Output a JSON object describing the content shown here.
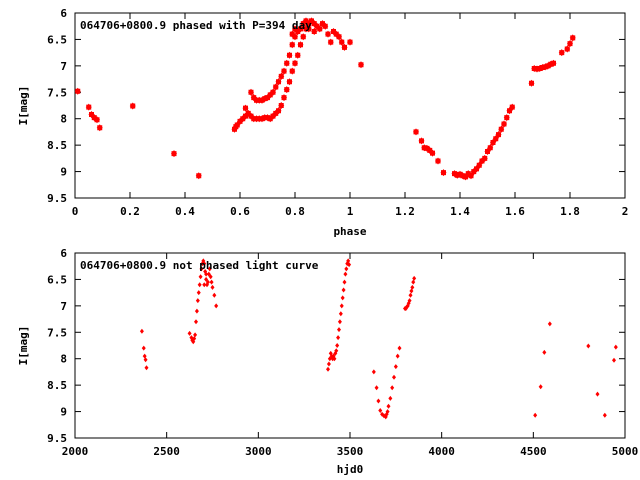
{
  "colors": {
    "points": "#ff0000",
    "axes": "#000000",
    "background": "#ffffff"
  },
  "chart_data": [
    {
      "type": "scatter",
      "title": "064706+0800.9 phased with P=394 day",
      "xlabel": "phase",
      "ylabel": "I[mag]",
      "xlim": [
        0,
        2
      ],
      "ylim": [
        9.5,
        6
      ],
      "y_inverted": true,
      "xticks": [
        "0",
        "0.2",
        "0.4",
        "0.6",
        "0.8",
        "1",
        "1.2",
        "1.4",
        "1.6",
        "1.8",
        "2"
      ],
      "yticks": [
        "6",
        "6.5",
        "7",
        "7.5",
        "8",
        "8.5",
        "9",
        "9.5"
      ],
      "series": [
        {
          "points": [
            [
              0.01,
              7.48
            ],
            [
              0.05,
              7.78
            ],
            [
              0.06,
              7.92
            ],
            [
              0.07,
              7.98
            ],
            [
              0.08,
              8.02
            ],
            [
              0.09,
              8.17
            ],
            [
              0.21,
              7.76
            ],
            [
              0.36,
              8.66
            ],
            [
              0.45,
              9.08
            ],
            [
              0.58,
              8.2
            ],
            [
              0.585,
              8.15
            ],
            [
              0.59,
              8.12
            ],
            [
              0.6,
              8.05
            ],
            [
              0.61,
              8.0
            ],
            [
              0.62,
              7.95
            ],
            [
              0.63,
              7.9
            ],
            [
              0.64,
              7.95
            ],
            [
              0.65,
              8.0
            ],
            [
              0.66,
              8.0
            ],
            [
              0.67,
              8.0
            ],
            [
              0.68,
              8.0
            ],
            [
              0.69,
              7.98
            ],
            [
              0.7,
              7.98
            ],
            [
              0.71,
              8.0
            ],
            [
              0.72,
              7.95
            ],
            [
              0.73,
              7.9
            ],
            [
              0.74,
              7.85
            ],
            [
              0.75,
              7.75
            ],
            [
              0.76,
              7.6
            ],
            [
              0.77,
              7.45
            ],
            [
              0.78,
              7.3
            ],
            [
              0.79,
              7.1
            ],
            [
              0.8,
              6.95
            ],
            [
              0.81,
              6.8
            ],
            [
              0.82,
              6.6
            ],
            [
              0.83,
              6.45
            ],
            [
              0.84,
              6.3
            ],
            [
              0.85,
              6.2
            ],
            [
              0.86,
              6.15
            ],
            [
              0.87,
              6.2
            ],
            [
              0.62,
              7.8
            ],
            [
              0.64,
              7.5
            ],
            [
              0.65,
              7.6
            ],
            [
              0.66,
              7.65
            ],
            [
              0.67,
              7.65
            ],
            [
              0.68,
              7.65
            ],
            [
              0.69,
              7.62
            ],
            [
              0.7,
              7.6
            ],
            [
              0.71,
              7.55
            ],
            [
              0.72,
              7.5
            ],
            [
              0.73,
              7.4
            ],
            [
              0.74,
              7.3
            ],
            [
              0.75,
              7.2
            ],
            [
              0.76,
              7.1
            ],
            [
              0.77,
              6.95
            ],
            [
              0.78,
              6.8
            ],
            [
              0.79,
              6.6
            ],
            [
              0.8,
              6.45
            ],
            [
              0.81,
              6.35
            ],
            [
              0.82,
              6.3
            ],
            [
              0.83,
              6.2
            ],
            [
              0.84,
              6.15
            ],
            [
              0.79,
              6.4
            ],
            [
              0.8,
              6.3
            ],
            [
              0.85,
              6.3
            ],
            [
              0.87,
              6.35
            ],
            [
              0.88,
              6.25
            ],
            [
              0.89,
              6.3
            ],
            [
              0.9,
              6.2
            ],
            [
              0.91,
              6.25
            ],
            [
              0.92,
              6.4
            ],
            [
              0.93,
              6.55
            ],
            [
              0.94,
              6.35
            ],
            [
              0.95,
              6.4
            ],
            [
              0.96,
              6.45
            ],
            [
              0.97,
              6.55
            ],
            [
              0.98,
              6.65
            ],
            [
              1.0,
              6.55
            ],
            [
              1.04,
              6.98
            ],
            [
              1.24,
              8.25
            ],
            [
              1.26,
              8.42
            ],
            [
              1.27,
              8.55
            ],
            [
              1.28,
              8.56
            ],
            [
              1.29,
              8.6
            ],
            [
              1.3,
              8.65
            ],
            [
              1.32,
              8.8
            ],
            [
              1.34,
              9.02
            ],
            [
              1.38,
              9.04
            ],
            [
              1.39,
              9.07
            ],
            [
              1.4,
              9.05
            ],
            [
              1.41,
              9.08
            ],
            [
              1.42,
              9.1
            ],
            [
              1.43,
              9.04
            ],
            [
              1.44,
              9.08
            ],
            [
              1.45,
              9.0
            ],
            [
              1.46,
              8.95
            ],
            [
              1.47,
              8.88
            ],
            [
              1.48,
              8.8
            ],
            [
              1.49,
              8.75
            ],
            [
              1.5,
              8.62
            ],
            [
              1.51,
              8.55
            ],
            [
              1.52,
              8.45
            ],
            [
              1.53,
              8.38
            ],
            [
              1.54,
              8.3
            ],
            [
              1.55,
              8.2
            ],
            [
              1.56,
              8.1
            ],
            [
              1.57,
              7.98
            ],
            [
              1.58,
              7.85
            ],
            [
              1.59,
              7.78
            ],
            [
              1.66,
              7.33
            ],
            [
              1.67,
              7.05
            ],
            [
              1.68,
              7.06
            ],
            [
              1.69,
              7.05
            ],
            [
              1.7,
              7.03
            ],
            [
              1.71,
              7.02
            ],
            [
              1.72,
              7.0
            ],
            [
              1.73,
              6.97
            ],
            [
              1.74,
              6.95
            ],
            [
              1.77,
              6.75
            ],
            [
              1.79,
              6.68
            ],
            [
              1.8,
              6.58
            ],
            [
              1.81,
              6.47
            ]
          ]
        }
      ]
    },
    {
      "type": "scatter",
      "title": "064706+0800.9 not phased light curve",
      "xlabel": "hjd0",
      "ylabel": "I[mag]",
      "xlim": [
        2000,
        5000
      ],
      "ylim": [
        9.5,
        6
      ],
      "y_inverted": true,
      "xticks": [
        "2000",
        "2500",
        "3000",
        "3500",
        "4000",
        "4500",
        "5000"
      ],
      "yticks": [
        "6",
        "6.5",
        "7",
        "7.5",
        "8",
        "8.5",
        "9",
        "9.5"
      ],
      "series": [
        {
          "points": [
            [
              2365,
              7.48
            ],
            [
              2375,
              7.8
            ],
            [
              2380,
              7.95
            ],
            [
              2385,
              8.02
            ],
            [
              2390,
              8.17
            ],
            [
              2625,
              7.52
            ],
            [
              2635,
              7.6
            ],
            [
              2640,
              7.65
            ],
            [
              2645,
              7.68
            ],
            [
              2650,
              7.62
            ],
            [
              2655,
              7.55
            ],
            [
              2660,
              7.3
            ],
            [
              2665,
              7.1
            ],
            [
              2670,
              6.9
            ],
            [
              2675,
              6.75
            ],
            [
              2680,
              6.6
            ],
            [
              2685,
              6.45
            ],
            [
              2690,
              6.3
            ],
            [
              2695,
              6.2
            ],
            [
              2700,
              6.15
            ],
            [
              2705,
              6.2
            ],
            [
              2710,
              6.35
            ],
            [
              2715,
              6.5
            ],
            [
              2720,
              6.6
            ],
            [
              2725,
              6.55
            ],
            [
              2730,
              6.4
            ],
            [
              2735,
              6.3
            ],
            [
              2740,
              6.45
            ],
            [
              2745,
              6.55
            ],
            [
              2750,
              6.65
            ],
            [
              2760,
              6.8
            ],
            [
              2770,
              7.0
            ],
            [
              2705,
              6.6
            ],
            [
              2715,
              6.4
            ],
            [
              3380,
              8.2
            ],
            [
              3385,
              8.1
            ],
            [
              3390,
              8.0
            ],
            [
              3395,
              7.9
            ],
            [
              3400,
              7.95
            ],
            [
              3405,
              8.0
            ],
            [
              3410,
              7.95
            ],
            [
              3415,
              8.0
            ],
            [
              3420,
              7.9
            ],
            [
              3425,
              7.85
            ],
            [
              3430,
              7.75
            ],
            [
              3435,
              7.6
            ],
            [
              3440,
              7.45
            ],
            [
              3445,
              7.3
            ],
            [
              3450,
              7.15
            ],
            [
              3455,
              7.0
            ],
            [
              3460,
              6.85
            ],
            [
              3465,
              6.7
            ],
            [
              3470,
              6.55
            ],
            [
              3475,
              6.4
            ],
            [
              3480,
              6.3
            ],
            [
              3485,
              6.2
            ],
            [
              3490,
              6.15
            ],
            [
              3495,
              6.22
            ],
            [
              3630,
              8.25
            ],
            [
              3645,
              8.55
            ],
            [
              3655,
              8.8
            ],
            [
              3665,
              8.98
            ],
            [
              3675,
              9.05
            ],
            [
              3685,
              9.08
            ],
            [
              3695,
              9.1
            ],
            [
              3700,
              9.05
            ],
            [
              3705,
              9.0
            ],
            [
              3710,
              8.9
            ],
            [
              3720,
              8.75
            ],
            [
              3730,
              8.55
            ],
            [
              3740,
              8.35
            ],
            [
              3750,
              8.15
            ],
            [
              3760,
              7.95
            ],
            [
              3770,
              7.8
            ],
            [
              3800,
              7.05
            ],
            [
              3805,
              7.05
            ],
            [
              3810,
              7.02
            ],
            [
              3815,
              7.0
            ],
            [
              3820,
              6.95
            ],
            [
              3825,
              6.9
            ],
            [
              3830,
              6.8
            ],
            [
              3835,
              6.72
            ],
            [
              3840,
              6.65
            ],
            [
              3845,
              6.55
            ],
            [
              3850,
              6.48
            ],
            [
              4510,
              9.07
            ],
            [
              4540,
              8.53
            ],
            [
              4560,
              7.88
            ],
            [
              4590,
              7.34
            ],
            [
              4800,
              7.76
            ],
            [
              4850,
              8.67
            ],
            [
              4890,
              9.07
            ],
            [
              4940,
              8.03
            ],
            [
              4950,
              7.78
            ]
          ]
        }
      ]
    }
  ]
}
